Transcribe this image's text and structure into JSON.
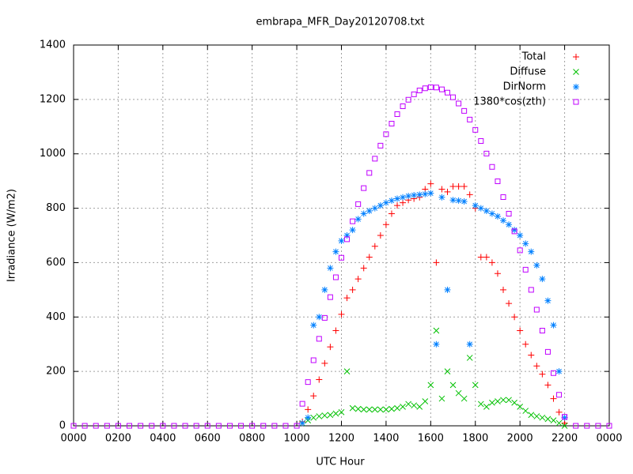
{
  "chart_data": {
    "type": "scatter",
    "title": "embrapa_MFR_Day20120708.txt",
    "xlabel": "UTC Hour",
    "ylabel": "Irradiance (W/m2)",
    "xlim": [
      0,
      24
    ],
    "ylim": [
      0,
      1400
    ],
    "xticks": [
      {
        "value": 0,
        "label": "0000"
      },
      {
        "value": 2,
        "label": "0200"
      },
      {
        "value": 4,
        "label": "0400"
      },
      {
        "value": 6,
        "label": "0600"
      },
      {
        "value": 8,
        "label": "0800"
      },
      {
        "value": 10,
        "label": "1000"
      },
      {
        "value": 12,
        "label": "1200"
      },
      {
        "value": 14,
        "label": "1400"
      },
      {
        "value": 16,
        "label": "1600"
      },
      {
        "value": 18,
        "label": "1800"
      },
      {
        "value": 20,
        "label": "2000"
      },
      {
        "value": 22,
        "label": "2200"
      },
      {
        "value": 24,
        "label": "0000"
      }
    ],
    "yticks": [
      0,
      200,
      400,
      600,
      800,
      1000,
      1200,
      1400
    ],
    "grid": true,
    "legend": "top-right",
    "x": [
      0,
      0.5,
      1,
      1.5,
      2,
      2.5,
      3,
      3.5,
      4,
      4.5,
      5,
      5.5,
      6,
      6.5,
      7,
      7.5,
      8,
      8.5,
      9,
      9.5,
      10,
      10.25,
      10.5,
      10.75,
      11,
      11.25,
      11.5,
      11.75,
      12,
      12.25,
      12.5,
      12.75,
      13,
      13.25,
      13.5,
      13.75,
      14,
      14.25,
      14.5,
      14.75,
      15,
      15.25,
      15.5,
      15.75,
      16,
      16.25,
      16.5,
      16.75,
      17,
      17.25,
      17.5,
      17.75,
      18,
      18.25,
      18.5,
      18.75,
      19,
      19.25,
      19.5,
      19.75,
      20,
      20.25,
      20.5,
      20.75,
      21,
      21.25,
      21.5,
      21.75,
      22,
      22.5,
      23,
      23.5,
      24
    ],
    "series": [
      {
        "name": "Total",
        "color": "#ff0000",
        "marker": "plus",
        "values": [
          null,
          null,
          null,
          null,
          null,
          null,
          null,
          null,
          null,
          null,
          null,
          null,
          null,
          null,
          null,
          null,
          null,
          null,
          null,
          null,
          null,
          15,
          60,
          110,
          170,
          230,
          290,
          350,
          410,
          470,
          500,
          540,
          580,
          620,
          660,
          700,
          740,
          780,
          810,
          820,
          830,
          835,
          840,
          870,
          890,
          600,
          870,
          860,
          880,
          880,
          880,
          850,
          800,
          620,
          620,
          600,
          560,
          500,
          450,
          400,
          350,
          300,
          260,
          220,
          190,
          150,
          100,
          50,
          10,
          null,
          null,
          null,
          null
        ]
      },
      {
        "name": "Diffuse",
        "color": "#00c000",
        "marker": "cross",
        "values": [
          null,
          null,
          null,
          null,
          null,
          null,
          null,
          null,
          null,
          null,
          null,
          null,
          null,
          null,
          null,
          null,
          null,
          null,
          null,
          null,
          null,
          10,
          20,
          30,
          35,
          38,
          40,
          45,
          50,
          200,
          65,
          62,
          60,
          60,
          60,
          60,
          60,
          62,
          65,
          70,
          80,
          75,
          70,
          90,
          150,
          350,
          100,
          200,
          150,
          120,
          100,
          250,
          150,
          80,
          70,
          85,
          90,
          95,
          95,
          85,
          70,
          55,
          40,
          35,
          30,
          25,
          20,
          10,
          0,
          null,
          null,
          null,
          null
        ]
      },
      {
        "name": "DirNorm",
        "color": "#0080ff",
        "marker": "star",
        "values": [
          null,
          null,
          null,
          null,
          null,
          null,
          null,
          null,
          null,
          null,
          null,
          null,
          null,
          null,
          null,
          null,
          null,
          null,
          null,
          null,
          null,
          10,
          30,
          370,
          400,
          500,
          580,
          640,
          680,
          700,
          720,
          760,
          780,
          790,
          800,
          810,
          820,
          828,
          835,
          840,
          845,
          848,
          850,
          852,
          855,
          300,
          840,
          500,
          830,
          828,
          825,
          300,
          810,
          800,
          790,
          780,
          770,
          755,
          740,
          720,
          700,
          670,
          640,
          590,
          540,
          460,
          370,
          200,
          30,
          null,
          null,
          null,
          null
        ]
      },
      {
        "name": "1380*cos(zth)",
        "color": "#c000ff",
        "marker": "square",
        "values": [
          0,
          0,
          0,
          0,
          0,
          0,
          0,
          0,
          0,
          0,
          0,
          0,
          0,
          0,
          0,
          0,
          0,
          0,
          0,
          0,
          0,
          81,
          161,
          241,
          320,
          397,
          473,
          546,
          618,
          686,
          752,
          815,
          874,
          930,
          982,
          1030,
          1072,
          1111,
          1146,
          1175,
          1199,
          1219,
          1233,
          1241,
          1245,
          1244,
          1237,
          1225,
          1208,
          1185,
          1158,
          1126,
          1088,
          1047,
          1001,
          952,
          899,
          841,
          780,
          715,
          645,
          574,
          500,
          427,
          350,
          272,
          194,
          114,
          33,
          0,
          0,
          0,
          0
        ]
      }
    ]
  }
}
